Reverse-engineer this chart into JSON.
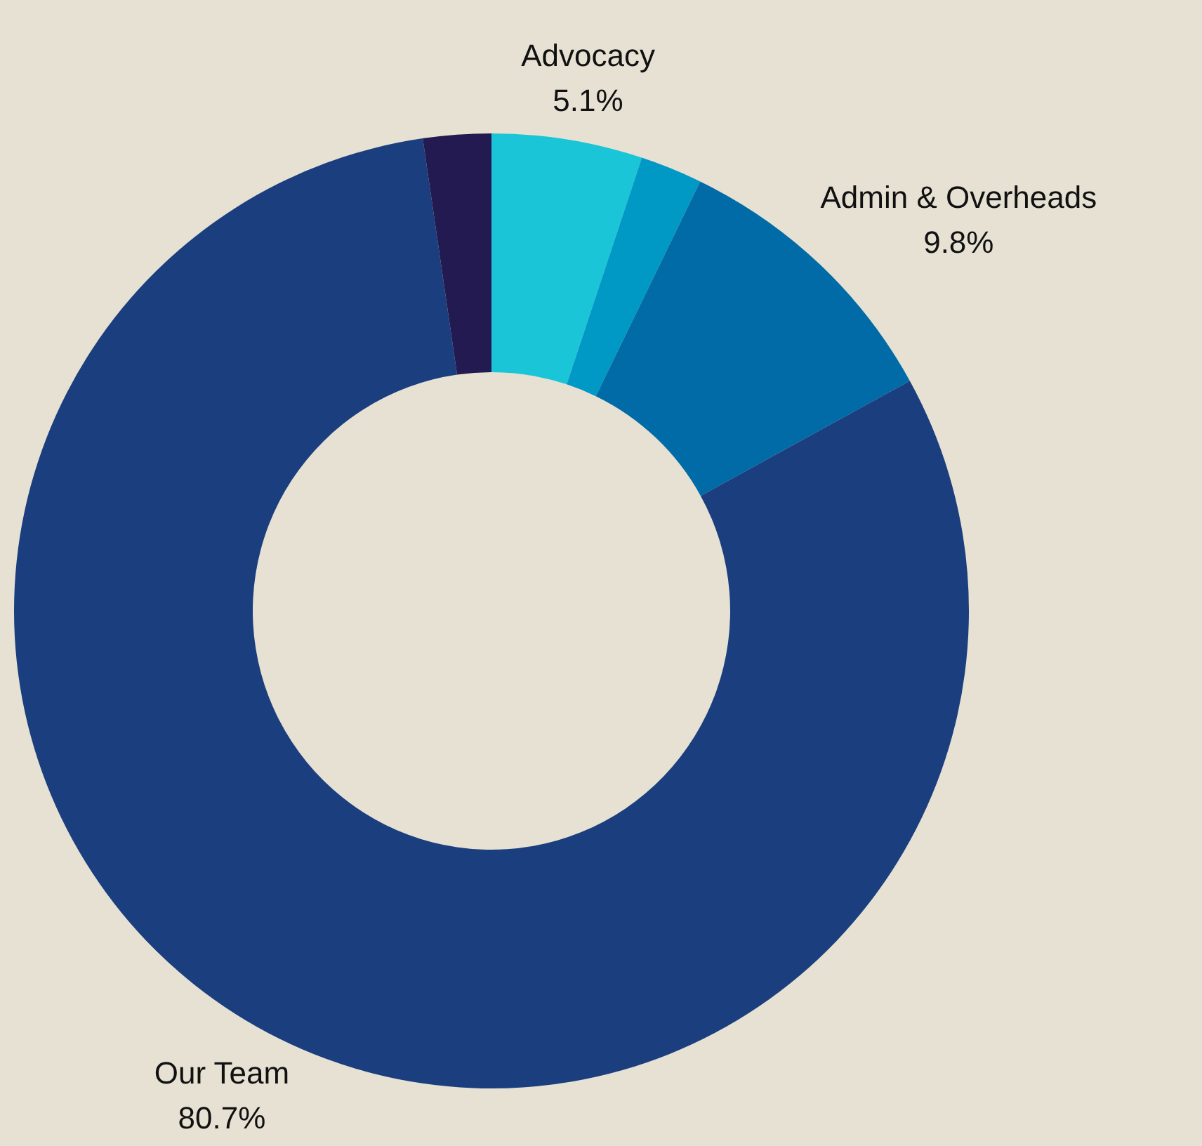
{
  "chart_data": {
    "type": "donut",
    "categories": [
      "Advocacy",
      null,
      "Admin & Overheads",
      "Our Team",
      null
    ],
    "values": [
      5.1,
      2.1,
      9.8,
      80.7,
      2.3
    ],
    "value_labels": [
      "5.1%",
      null,
      "9.8%",
      "80.7%",
      null
    ],
    "colors": [
      "#1bc5d8",
      "#0099c6",
      "#006ba6",
      "#1a3e7e",
      "#221a50"
    ]
  }
}
